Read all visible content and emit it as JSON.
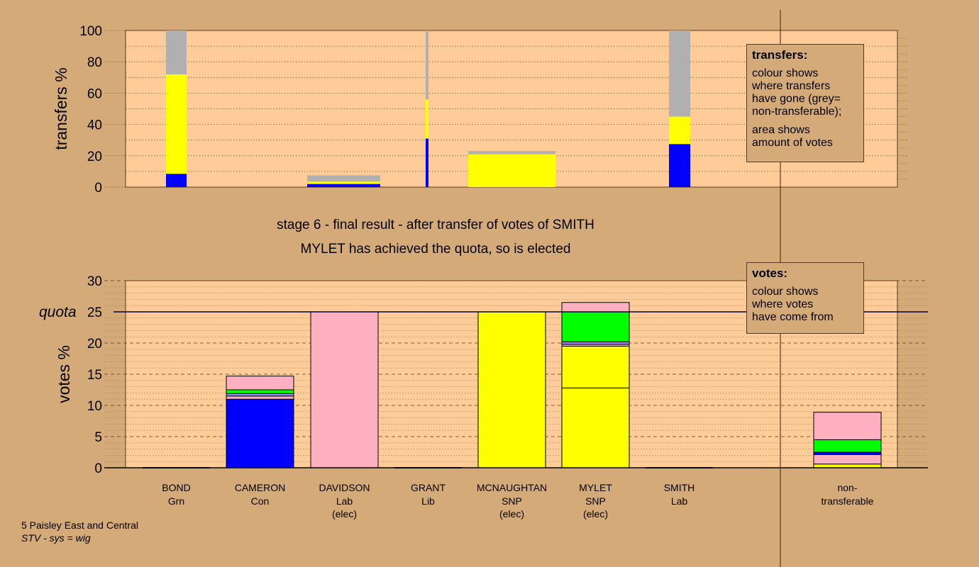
{
  "colors": {
    "background": "#d4aa78",
    "plot_area": "#ffcc99",
    "blue": "#0000ff",
    "yellow": "#ffff00",
    "grey": "#b0b0b0",
    "pink": "#ffb0c0",
    "green": "#00ff00",
    "purple": "#9090ff",
    "dark_line": "#000040"
  },
  "captions": {
    "stage_line": "stage 6 - final result - after transfer of votes of SMITH",
    "elected_line": "MYLET has achieved the quota, so is elected"
  },
  "legends": {
    "transfers": {
      "title": "transfers:",
      "lines": [
        "colour shows",
        "where transfers",
        "have gone (grey=",
        "non-transferable);"
      ],
      "lines2": [
        "area shows",
        "amount of votes"
      ]
    },
    "votes": {
      "title": "votes:",
      "lines": [
        "colour shows",
        "where votes",
        "have come from"
      ]
    }
  },
  "footer": {
    "title": "5 Paisley East and Central",
    "subtitle": "STV - sys = wig"
  },
  "chart_data": [
    {
      "type": "bar",
      "name": "transfers",
      "ylabel": "transfers %",
      "ylim": [
        0,
        100
      ],
      "yticks": [
        0,
        20,
        40,
        60,
        80,
        100
      ],
      "note": "stacked transfer bars; width = amount of votes",
      "bars": [
        {
          "segments": [
            {
              "color": "blue",
              "value": 8.5
            },
            {
              "color": "yellow",
              "value": 63.5
            },
            {
              "color": "grey",
              "value": 28
            }
          ]
        },
        {
          "segments": [
            {
              "color": "blue",
              "value": 2
            },
            {
              "color": "yellow",
              "value": 1.5
            },
            {
              "color": "grey",
              "value": 4
            }
          ]
        },
        {
          "segments": [
            {
              "color": "blue",
              "value": 31
            },
            {
              "color": "yellow",
              "value": 25
            },
            {
              "color": "grey",
              "value": 44
            }
          ]
        },
        {
          "segments": [
            {
              "color": "yellow",
              "value": 21
            },
            {
              "color": "grey",
              "value": 2
            }
          ]
        },
        {
          "segments": [
            {
              "color": "blue",
              "value": 27.5
            },
            {
              "color": "yellow",
              "value": 17.5
            },
            {
              "color": "grey",
              "value": 55
            }
          ]
        }
      ]
    },
    {
      "type": "bar",
      "name": "votes",
      "ylabel": "votes %",
      "ylim": [
        0,
        30
      ],
      "yticks": [
        0,
        5,
        10,
        15,
        20,
        25,
        30
      ],
      "quota": 25,
      "quota_label": "quota",
      "categories": [
        {
          "name": "BOND",
          "party": "Grn",
          "status": ""
        },
        {
          "name": "CAMERON",
          "party": "Con",
          "status": ""
        },
        {
          "name": "DAVIDSON",
          "party": "Lab",
          "status": "(elec)"
        },
        {
          "name": "GRANT",
          "party": "Lib",
          "status": ""
        },
        {
          "name": "MCNAUGHTAN",
          "party": "SNP",
          "status": "(elec)"
        },
        {
          "name": "MYLET",
          "party": "SNP",
          "status": "(elec)"
        },
        {
          "name": "SMITH",
          "party": "Lab",
          "status": ""
        },
        {
          "name": "non-",
          "party": "transferable",
          "status": ""
        }
      ],
      "stacks": [
        [],
        [
          {
            "color": "blue",
            "value": 11
          },
          {
            "color": "pink",
            "value": 0.5
          },
          {
            "color": "purple",
            "value": 0.4
          },
          {
            "color": "green",
            "value": 0.6
          },
          {
            "color": "pink",
            "value": 2.2
          }
        ],
        [
          {
            "color": "pink",
            "value": 25
          }
        ],
        [],
        [
          {
            "color": "yellow",
            "value": 25
          }
        ],
        [
          {
            "color": "yellow",
            "value": 12.8
          },
          {
            "color": "yellow",
            "value": 6.7
          },
          {
            "color": "pink",
            "value": 0.3
          },
          {
            "color": "purple",
            "value": 0.4
          },
          {
            "color": "green",
            "value": 4.8
          },
          {
            "color": "pink",
            "value": 1.5
          }
        ],
        [],
        [
          {
            "color": "yellow",
            "value": 0.6
          },
          {
            "color": "pink",
            "value": 1.5
          },
          {
            "color": "blue",
            "value": 0.4
          },
          {
            "color": "green",
            "value": 2
          },
          {
            "color": "pink",
            "value": 4.4
          }
        ]
      ]
    }
  ]
}
